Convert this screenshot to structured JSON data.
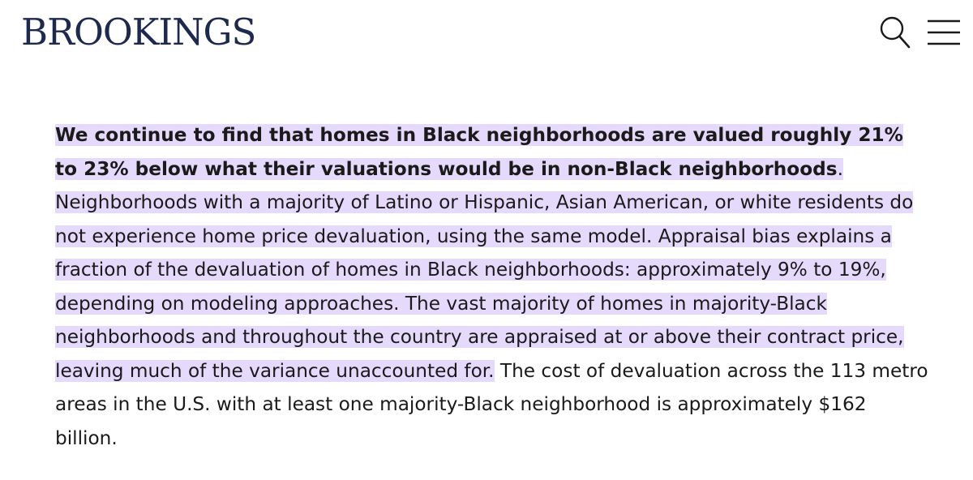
{
  "header": {
    "logo_text": "BROOKINGS",
    "search_icon": "search-icon",
    "menu_icon": "hamburger-menu-icon"
  },
  "article": {
    "highlight_color": "#e6dafc",
    "highlighted_bold": "We continue to find that homes in Black neighborhoods are valued roughly 21% to 23% below what their valuations would be in non-Black neighborhoods",
    "highlighted_period": ".",
    "highlighted_regular": " Neighborhoods with a majority of Latino or Hispanic, Asian American, or white residents do not experience home price devaluation, using the same model. Appraisal bias explains a fraction of the devaluation of homes in Black neighborhoods: approximately 9% to 19%, depending on modeling approaches. The vast majority of homes in majority-Black neighborhoods and throughout the country are appraised at or above their contract price, leaving much of the variance unaccounted for.",
    "unhighlighted": " The cost of devaluation across the 113 metro areas in the U.S. with at least one majority-Black neighborhood is approximately $162 billion."
  }
}
